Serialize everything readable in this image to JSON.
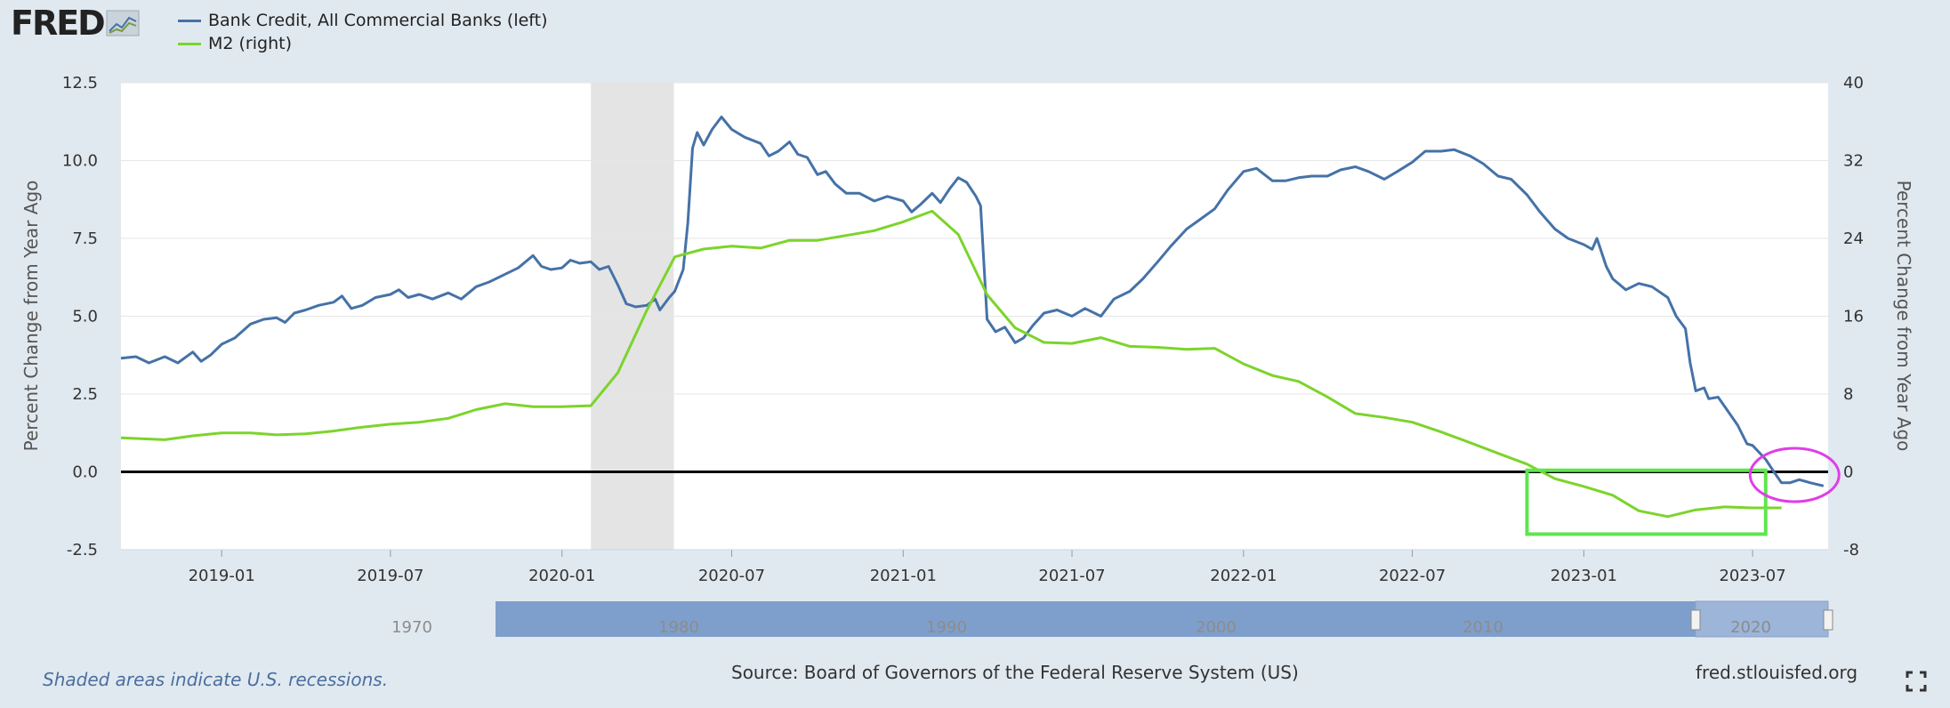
{
  "logo": {
    "text": "FRED",
    "icon": "fred-chart-icon"
  },
  "legend": [
    {
      "label": "Bank Credit, All Commercial Banks (left)",
      "color": "#4572a7"
    },
    {
      "label": "M2 (right)",
      "color": "#7cd42b"
    }
  ],
  "footer": {
    "recessions_note": "Shaded areas indicate U.S. recessions.",
    "source": "Source: Board of Governors of the Federal Reserve System (US)",
    "site": "fred.stlouisfed.org"
  },
  "chart_data": {
    "type": "line",
    "xlabel": "",
    "ylabel_left": "Percent Change from Year Ago",
    "ylabel_right": "Percent Change from Year Ago",
    "x_range": [
      "2018-09-15",
      "2023-09-20"
    ],
    "ylim_left": [
      -2.5,
      12.5
    ],
    "ylim_right": [
      -8,
      40
    ],
    "yticks_left": [
      "12.5",
      "10.0",
      "7.5",
      "5.0",
      "2.5",
      "0.0",
      "-2.5"
    ],
    "yticks_right": [
      "40",
      "32",
      "24",
      "16",
      "8",
      "0",
      "-8"
    ],
    "xticks": [
      "2019-01",
      "2019-07",
      "2020-01",
      "2020-07",
      "2021-01",
      "2021-07",
      "2022-01",
      "2022-07",
      "2023-01",
      "2023-07"
    ],
    "grid": true,
    "legend_position": "top-left",
    "recession": {
      "start": "2020-02-01",
      "end": "2020-04-30"
    },
    "navigator_labels": [
      "1970",
      "1980",
      "1990",
      "2000",
      "2010",
      "2020"
    ],
    "series": [
      {
        "name": "Bank Credit, All Commercial Banks (left)",
        "color": "#4572a7",
        "axis": "left",
        "points": [
          [
            "2018-09-15",
            3.65
          ],
          [
            "2018-10-01",
            3.7
          ],
          [
            "2018-10-15",
            3.5
          ],
          [
            "2018-11-01",
            3.7
          ],
          [
            "2018-11-15",
            3.5
          ],
          [
            "2018-12-01",
            3.85
          ],
          [
            "2018-12-10",
            3.55
          ],
          [
            "2018-12-20",
            3.75
          ],
          [
            "2019-01-01",
            4.1
          ],
          [
            "2019-01-15",
            4.3
          ],
          [
            "2019-02-01",
            4.75
          ],
          [
            "2019-02-15",
            4.9
          ],
          [
            "2019-03-01",
            4.95
          ],
          [
            "2019-03-10",
            4.8
          ],
          [
            "2019-03-20",
            5.1
          ],
          [
            "2019-04-01",
            5.2
          ],
          [
            "2019-04-15",
            5.35
          ],
          [
            "2019-05-01",
            5.45
          ],
          [
            "2019-05-10",
            5.65
          ],
          [
            "2019-05-20",
            5.25
          ],
          [
            "2019-06-01",
            5.35
          ],
          [
            "2019-06-15",
            5.6
          ],
          [
            "2019-07-01",
            5.7
          ],
          [
            "2019-07-10",
            5.85
          ],
          [
            "2019-07-20",
            5.6
          ],
          [
            "2019-08-01",
            5.7
          ],
          [
            "2019-08-15",
            5.55
          ],
          [
            "2019-09-01",
            5.75
          ],
          [
            "2019-09-15",
            5.55
          ],
          [
            "2019-10-01",
            5.95
          ],
          [
            "2019-10-15",
            6.1
          ],
          [
            "2019-11-01",
            6.35
          ],
          [
            "2019-11-15",
            6.55
          ],
          [
            "2019-12-01",
            6.95
          ],
          [
            "2019-12-10",
            6.6
          ],
          [
            "2019-12-20",
            6.5
          ],
          [
            "2020-01-01",
            6.55
          ],
          [
            "2020-01-10",
            6.8
          ],
          [
            "2020-01-20",
            6.7
          ],
          [
            "2020-02-01",
            6.75
          ],
          [
            "2020-02-10",
            6.5
          ],
          [
            "2020-02-20",
            6.6
          ],
          [
            "2020-03-01",
            6.0
          ],
          [
            "2020-03-10",
            5.4
          ],
          [
            "2020-03-20",
            5.3
          ],
          [
            "2020-04-01",
            5.35
          ],
          [
            "2020-04-10",
            5.55
          ],
          [
            "2020-04-15",
            5.2
          ],
          [
            "2020-04-25",
            5.6
          ],
          [
            "2020-05-01",
            5.8
          ],
          [
            "2020-05-10",
            6.5
          ],
          [
            "2020-05-15",
            8.0
          ],
          [
            "2020-05-20",
            10.4
          ],
          [
            "2020-05-25",
            10.9
          ],
          [
            "2020-06-01",
            10.5
          ],
          [
            "2020-06-10",
            11.0
          ],
          [
            "2020-06-20",
            11.4
          ],
          [
            "2020-07-01",
            11.0
          ],
          [
            "2020-07-15",
            10.75
          ],
          [
            "2020-08-01",
            10.55
          ],
          [
            "2020-08-10",
            10.15
          ],
          [
            "2020-08-20",
            10.3
          ],
          [
            "2020-09-01",
            10.6
          ],
          [
            "2020-09-10",
            10.2
          ],
          [
            "2020-09-20",
            10.1
          ],
          [
            "2020-10-01",
            9.55
          ],
          [
            "2020-10-10",
            9.65
          ],
          [
            "2020-10-20",
            9.25
          ],
          [
            "2020-11-01",
            8.95
          ],
          [
            "2020-11-15",
            8.95
          ],
          [
            "2020-12-01",
            8.7
          ],
          [
            "2020-12-15",
            8.85
          ],
          [
            "2021-01-01",
            8.7
          ],
          [
            "2021-01-10",
            8.35
          ],
          [
            "2021-01-20",
            8.6
          ],
          [
            "2021-02-01",
            8.95
          ],
          [
            "2021-02-10",
            8.65
          ],
          [
            "2021-02-20",
            9.1
          ],
          [
            "2021-03-01",
            9.45
          ],
          [
            "2021-03-10",
            9.3
          ],
          [
            "2021-03-20",
            8.85
          ],
          [
            "2021-03-25",
            8.55
          ],
          [
            "2021-04-01",
            4.9
          ],
          [
            "2021-04-10",
            4.5
          ],
          [
            "2021-04-20",
            4.65
          ],
          [
            "2021-05-01",
            4.15
          ],
          [
            "2021-05-10",
            4.3
          ],
          [
            "2021-05-20",
            4.7
          ],
          [
            "2021-06-01",
            5.1
          ],
          [
            "2021-06-15",
            5.2
          ],
          [
            "2021-07-01",
            5.0
          ],
          [
            "2021-07-15",
            5.25
          ],
          [
            "2021-08-01",
            5.0
          ],
          [
            "2021-08-15",
            5.55
          ],
          [
            "2021-09-01",
            5.8
          ],
          [
            "2021-09-15",
            6.2
          ],
          [
            "2021-10-01",
            6.75
          ],
          [
            "2021-10-15",
            7.25
          ],
          [
            "2021-11-01",
            7.8
          ],
          [
            "2021-11-15",
            8.1
          ],
          [
            "2021-12-01",
            8.45
          ],
          [
            "2021-12-15",
            9.05
          ],
          [
            "2022-01-01",
            9.65
          ],
          [
            "2022-01-15",
            9.75
          ],
          [
            "2022-02-01",
            9.35
          ],
          [
            "2022-02-15",
            9.35
          ],
          [
            "2022-03-01",
            9.45
          ],
          [
            "2022-03-15",
            9.5
          ],
          [
            "2022-04-01",
            9.5
          ],
          [
            "2022-04-15",
            9.7
          ],
          [
            "2022-05-01",
            9.8
          ],
          [
            "2022-05-15",
            9.65
          ],
          [
            "2022-06-01",
            9.4
          ],
          [
            "2022-06-15",
            9.65
          ],
          [
            "2022-07-01",
            9.95
          ],
          [
            "2022-07-15",
            10.3
          ],
          [
            "2022-08-01",
            10.3
          ],
          [
            "2022-08-15",
            10.35
          ],
          [
            "2022-09-01",
            10.15
          ],
          [
            "2022-09-15",
            9.9
          ],
          [
            "2022-10-01",
            9.5
          ],
          [
            "2022-10-15",
            9.4
          ],
          [
            "2022-11-01",
            8.9
          ],
          [
            "2022-11-15",
            8.35
          ],
          [
            "2022-12-01",
            7.8
          ],
          [
            "2022-12-15",
            7.5
          ],
          [
            "2023-01-01",
            7.3
          ],
          [
            "2023-01-10",
            7.15
          ],
          [
            "2023-01-15",
            7.5
          ],
          [
            "2023-01-25",
            6.6
          ],
          [
            "2023-02-01",
            6.2
          ],
          [
            "2023-02-15",
            5.85
          ],
          [
            "2023-03-01",
            6.05
          ],
          [
            "2023-03-15",
            5.95
          ],
          [
            "2023-04-01",
            5.6
          ],
          [
            "2023-04-10",
            5.0
          ],
          [
            "2023-04-20",
            4.6
          ],
          [
            "2023-04-25",
            3.5
          ],
          [
            "2023-05-01",
            2.6
          ],
          [
            "2023-05-10",
            2.7
          ],
          [
            "2023-05-15",
            2.35
          ],
          [
            "2023-05-25",
            2.4
          ],
          [
            "2023-06-01",
            2.1
          ],
          [
            "2023-06-15",
            1.5
          ],
          [
            "2023-06-25",
            0.9
          ],
          [
            "2023-07-01",
            0.85
          ],
          [
            "2023-07-15",
            0.4
          ],
          [
            "2023-07-25",
            -0.05
          ],
          [
            "2023-08-01",
            -0.35
          ],
          [
            "2023-08-10",
            -0.35
          ],
          [
            "2023-08-20",
            -0.25
          ],
          [
            "2023-09-01",
            -0.35
          ],
          [
            "2023-09-15",
            -0.45
          ]
        ]
      },
      {
        "name": "M2 (right)",
        "color": "#7cd42b",
        "axis": "right",
        "points": [
          [
            "2018-09-15",
            3.5
          ],
          [
            "2018-11-01",
            3.3
          ],
          [
            "2018-12-01",
            3.7
          ],
          [
            "2019-01-01",
            4.0
          ],
          [
            "2019-02-01",
            4.0
          ],
          [
            "2019-03-01",
            3.8
          ],
          [
            "2019-04-01",
            3.9
          ],
          [
            "2019-05-01",
            4.2
          ],
          [
            "2019-06-01",
            4.6
          ],
          [
            "2019-07-01",
            4.9
          ],
          [
            "2019-08-01",
            5.1
          ],
          [
            "2019-09-01",
            5.5
          ],
          [
            "2019-10-01",
            6.4
          ],
          [
            "2019-11-01",
            7.0
          ],
          [
            "2019-12-01",
            6.7
          ],
          [
            "2020-01-01",
            6.7
          ],
          [
            "2020-02-01",
            6.8
          ],
          [
            "2020-03-01",
            10.2
          ],
          [
            "2020-04-01",
            16.6
          ],
          [
            "2020-05-01",
            22.1
          ],
          [
            "2020-06-01",
            22.9
          ],
          [
            "2020-07-01",
            23.2
          ],
          [
            "2020-08-01",
            23.0
          ],
          [
            "2020-09-01",
            23.8
          ],
          [
            "2020-10-01",
            23.8
          ],
          [
            "2020-11-01",
            24.3
          ],
          [
            "2020-12-01",
            24.8
          ],
          [
            "2021-01-01",
            25.7
          ],
          [
            "2021-02-01",
            26.8
          ],
          [
            "2021-03-01",
            24.4
          ],
          [
            "2021-04-01",
            18.2
          ],
          [
            "2021-05-01",
            14.8
          ],
          [
            "2021-06-01",
            13.3
          ],
          [
            "2021-07-01",
            13.2
          ],
          [
            "2021-08-01",
            13.8
          ],
          [
            "2021-09-01",
            12.9
          ],
          [
            "2021-10-01",
            12.8
          ],
          [
            "2021-11-01",
            12.6
          ],
          [
            "2021-12-01",
            12.7
          ],
          [
            "2022-01-01",
            11.1
          ],
          [
            "2022-02-01",
            9.9
          ],
          [
            "2022-03-01",
            9.3
          ],
          [
            "2022-04-01",
            7.7
          ],
          [
            "2022-05-01",
            6.0
          ],
          [
            "2022-06-01",
            5.6
          ],
          [
            "2022-07-01",
            5.1
          ],
          [
            "2022-08-01",
            4.1
          ],
          [
            "2022-09-01",
            3.0
          ],
          [
            "2022-10-01",
            1.9
          ],
          [
            "2022-11-01",
            0.8
          ],
          [
            "2022-12-01",
            -0.7
          ],
          [
            "2023-01-01",
            -1.5
          ],
          [
            "2023-02-01",
            -2.4
          ],
          [
            "2023-03-01",
            -4.0
          ],
          [
            "2023-04-01",
            -4.6
          ],
          [
            "2023-05-01",
            -3.9
          ],
          [
            "2023-06-01",
            -3.6
          ],
          [
            "2023-07-01",
            -3.7
          ],
          [
            "2023-08-01",
            -3.7
          ]
        ]
      }
    ]
  }
}
